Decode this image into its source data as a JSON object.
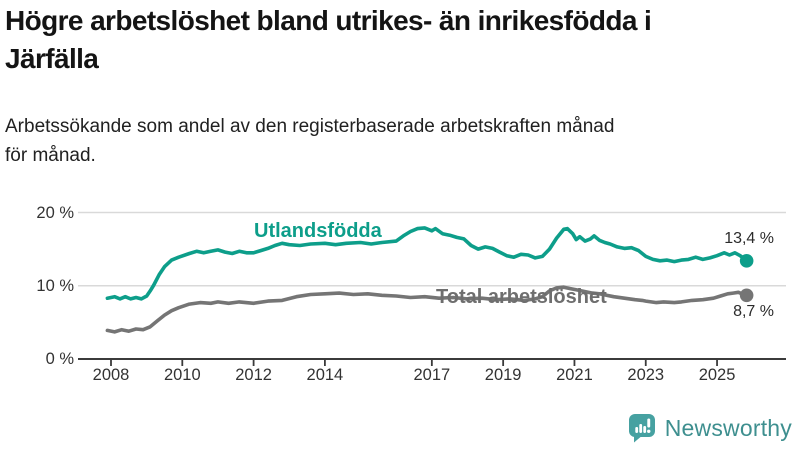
{
  "header": {
    "title_line1": "Högre arbetslöshet bland utrikes- än inrikesfödda i",
    "title_line2": "Järfälla",
    "subtitle_line1": "Arbetssökande som andel av den registerbaserade arbetskraften månad",
    "subtitle_line2": "för månad."
  },
  "chart_data": {
    "type": "line",
    "title": "Högre arbetslöshet bland utrikes- än inrikesfödda i Järfälla",
    "subtitle": "Arbetssökande som andel av den registerbaserade arbetskraften månad för månad.",
    "xlabel": "",
    "ylabel": "",
    "xlim": [
      2007.75,
      2026.0
    ],
    "ylim": [
      0,
      20.8
    ],
    "grid": "horizontal",
    "x_ticks": [
      2008,
      2010,
      2012,
      2014,
      2017,
      2019,
      2021,
      2023,
      2025
    ],
    "x_tick_labels": [
      "2008",
      "2010",
      "2012",
      "2014",
      "2017",
      "2019",
      "2021",
      "2023",
      "2025"
    ],
    "y_ticks": [
      0,
      10,
      20
    ],
    "y_tick_labels": [
      "0 %",
      "10 %",
      "20 %"
    ],
    "axis_color": "#3b3b3b",
    "grid_color": "#d9d9d9",
    "legend_position": "inline-labels",
    "series": [
      {
        "name": "Utlandsfödda",
        "color": "#0d9e8a",
        "end_label": "13,4 %",
        "end_value": 13.4,
        "points": [
          [
            2007.9,
            8.3
          ],
          [
            2008.1,
            8.5
          ],
          [
            2008.25,
            8.2
          ],
          [
            2008.4,
            8.5
          ],
          [
            2008.55,
            8.2
          ],
          [
            2008.7,
            8.4
          ],
          [
            2008.85,
            8.2
          ],
          [
            2009.0,
            8.6
          ],
          [
            2009.1,
            9.3
          ],
          [
            2009.2,
            10.1
          ],
          [
            2009.35,
            11.5
          ],
          [
            2009.5,
            12.6
          ],
          [
            2009.7,
            13.5
          ],
          [
            2009.9,
            13.9
          ],
          [
            2010.2,
            14.4
          ],
          [
            2010.4,
            14.7
          ],
          [
            2010.6,
            14.5
          ],
          [
            2010.8,
            14.7
          ],
          [
            2011.0,
            14.9
          ],
          [
            2011.2,
            14.6
          ],
          [
            2011.4,
            14.4
          ],
          [
            2011.6,
            14.7
          ],
          [
            2011.8,
            14.5
          ],
          [
            2012.0,
            14.5
          ],
          [
            2012.2,
            14.8
          ],
          [
            2012.4,
            15.1
          ],
          [
            2012.6,
            15.5
          ],
          [
            2012.8,
            15.8
          ],
          [
            2013.0,
            15.6
          ],
          [
            2013.3,
            15.5
          ],
          [
            2013.6,
            15.7
          ],
          [
            2014.0,
            15.8
          ],
          [
            2014.3,
            15.6
          ],
          [
            2014.6,
            15.8
          ],
          [
            2015.0,
            15.9
          ],
          [
            2015.3,
            15.7
          ],
          [
            2015.6,
            15.9
          ],
          [
            2016.0,
            16.1
          ],
          [
            2016.2,
            16.8
          ],
          [
            2016.4,
            17.4
          ],
          [
            2016.6,
            17.8
          ],
          [
            2016.8,
            17.9
          ],
          [
            2017.0,
            17.5
          ],
          [
            2017.1,
            17.8
          ],
          [
            2017.3,
            17.1
          ],
          [
            2017.5,
            16.9
          ],
          [
            2017.7,
            16.6
          ],
          [
            2017.9,
            16.4
          ],
          [
            2018.1,
            15.5
          ],
          [
            2018.3,
            15.0
          ],
          [
            2018.5,
            15.3
          ],
          [
            2018.7,
            15.1
          ],
          [
            2018.9,
            14.6
          ],
          [
            2019.1,
            14.1
          ],
          [
            2019.3,
            13.9
          ],
          [
            2019.5,
            14.3
          ],
          [
            2019.7,
            14.2
          ],
          [
            2019.9,
            13.8
          ],
          [
            2020.1,
            14.0
          ],
          [
            2020.3,
            15.0
          ],
          [
            2020.5,
            16.5
          ],
          [
            2020.7,
            17.7
          ],
          [
            2020.8,
            17.8
          ],
          [
            2020.95,
            17.1
          ],
          [
            2021.05,
            16.3
          ],
          [
            2021.15,
            16.7
          ],
          [
            2021.3,
            16.1
          ],
          [
            2021.45,
            16.4
          ],
          [
            2021.55,
            16.8
          ],
          [
            2021.7,
            16.2
          ],
          [
            2021.85,
            15.9
          ],
          [
            2022.0,
            15.7
          ],
          [
            2022.2,
            15.3
          ],
          [
            2022.4,
            15.1
          ],
          [
            2022.6,
            15.2
          ],
          [
            2022.8,
            14.8
          ],
          [
            2023.0,
            14.0
          ],
          [
            2023.2,
            13.6
          ],
          [
            2023.4,
            13.4
          ],
          [
            2023.6,
            13.5
          ],
          [
            2023.8,
            13.3
          ],
          [
            2024.0,
            13.5
          ],
          [
            2024.2,
            13.6
          ],
          [
            2024.4,
            13.9
          ],
          [
            2024.6,
            13.6
          ],
          [
            2024.8,
            13.8
          ],
          [
            2025.0,
            14.1
          ],
          [
            2025.2,
            14.5
          ],
          [
            2025.35,
            14.2
          ],
          [
            2025.5,
            14.5
          ],
          [
            2025.65,
            14.1
          ],
          [
            2025.83,
            13.4
          ]
        ]
      },
      {
        "name": "Total arbetslöshet",
        "color": "#757575",
        "end_label": "8,7 %",
        "end_value": 8.7,
        "points": [
          [
            2007.9,
            3.9
          ],
          [
            2008.1,
            3.7
          ],
          [
            2008.3,
            4.0
          ],
          [
            2008.5,
            3.8
          ],
          [
            2008.7,
            4.1
          ],
          [
            2008.9,
            4.0
          ],
          [
            2009.1,
            4.4
          ],
          [
            2009.3,
            5.2
          ],
          [
            2009.5,
            6.0
          ],
          [
            2009.7,
            6.6
          ],
          [
            2009.9,
            7.0
          ],
          [
            2010.2,
            7.5
          ],
          [
            2010.5,
            7.7
          ],
          [
            2010.8,
            7.6
          ],
          [
            2011.0,
            7.8
          ],
          [
            2011.3,
            7.6
          ],
          [
            2011.6,
            7.8
          ],
          [
            2012.0,
            7.6
          ],
          [
            2012.4,
            7.9
          ],
          [
            2012.8,
            8.0
          ],
          [
            2013.2,
            8.5
          ],
          [
            2013.6,
            8.8
          ],
          [
            2014.0,
            8.9
          ],
          [
            2014.4,
            9.0
          ],
          [
            2014.8,
            8.8
          ],
          [
            2015.2,
            8.9
          ],
          [
            2015.6,
            8.7
          ],
          [
            2016.0,
            8.6
          ],
          [
            2016.4,
            8.4
          ],
          [
            2016.8,
            8.5
          ],
          [
            2017.2,
            8.3
          ],
          [
            2017.6,
            8.4
          ],
          [
            2018.0,
            8.2
          ],
          [
            2018.4,
            8.3
          ],
          [
            2018.8,
            8.1
          ],
          [
            2019.2,
            8.2
          ],
          [
            2019.6,
            8.0
          ],
          [
            2019.9,
            8.2
          ],
          [
            2020.1,
            8.5
          ],
          [
            2020.3,
            9.3
          ],
          [
            2020.5,
            9.7
          ],
          [
            2020.7,
            9.8
          ],
          [
            2020.9,
            9.6
          ],
          [
            2021.1,
            9.4
          ],
          [
            2021.3,
            9.2
          ],
          [
            2021.5,
            9.0
          ],
          [
            2021.7,
            8.9
          ],
          [
            2021.9,
            8.7
          ],
          [
            2022.1,
            8.5
          ],
          [
            2022.4,
            8.3
          ],
          [
            2022.7,
            8.1
          ],
          [
            2022.9,
            8.0
          ],
          [
            2023.0,
            7.9
          ],
          [
            2023.3,
            7.7
          ],
          [
            2023.5,
            7.8
          ],
          [
            2023.8,
            7.7
          ],
          [
            2024.0,
            7.8
          ],
          [
            2024.3,
            8.0
          ],
          [
            2024.6,
            8.1
          ],
          [
            2024.9,
            8.3
          ],
          [
            2025.1,
            8.6
          ],
          [
            2025.3,
            8.9
          ],
          [
            2025.45,
            9.0
          ],
          [
            2025.6,
            9.1
          ],
          [
            2025.7,
            8.9
          ],
          [
            2025.83,
            8.7
          ]
        ]
      }
    ]
  },
  "footer": {
    "brand": "Newsworthy",
    "logo_color": "#46a1a1",
    "text_color": "#3e8f8f"
  }
}
